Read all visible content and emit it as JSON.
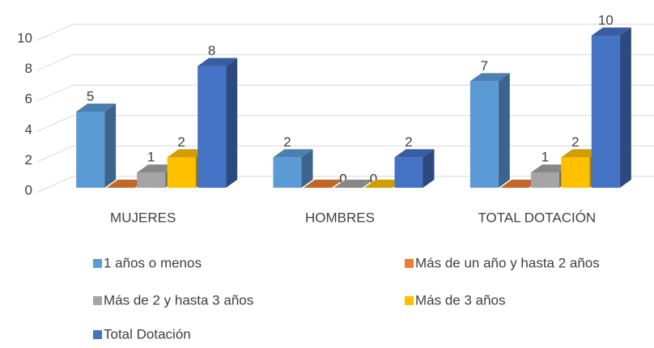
{
  "chart_data": {
    "type": "bar3d",
    "categories": [
      "MUJERES",
      "HOMBRES",
      "TOTAL DOTACIÓN"
    ],
    "series": [
      {
        "name": "1 años o menos",
        "color": "#5b9bd5",
        "values": [
          5,
          2,
          7
        ]
      },
      {
        "name": "Más de un año y hasta 2 años",
        "color": "#ed7d31",
        "values": [
          0,
          0,
          0
        ]
      },
      {
        "name": "Más de 2 y hasta 3 años",
        "color": "#a5a5a5",
        "values": [
          1,
          0,
          1
        ]
      },
      {
        "name": "Más de 3 años",
        "color": "#ffc000",
        "values": [
          2,
          0,
          2
        ]
      },
      {
        "name": "Total Dotación",
        "color": "#4472c4",
        "values": [
          8,
          2,
          10
        ]
      }
    ],
    "ylim": [
      0,
      10
    ],
    "yticks": [
      0,
      2,
      4,
      6,
      8,
      10
    ],
    "grid": true,
    "legend": "bottom"
  }
}
